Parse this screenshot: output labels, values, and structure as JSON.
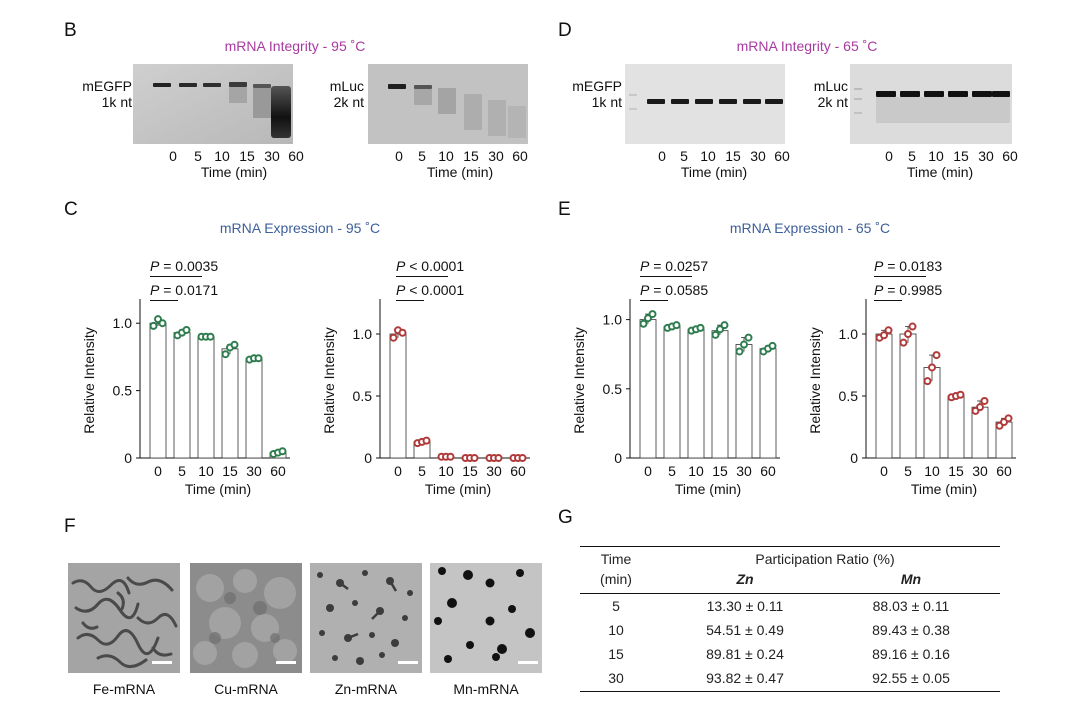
{
  "panels": {
    "B": "B",
    "D": "D",
    "C": "C",
    "E": "E",
    "F": "F",
    "G": "G"
  },
  "integrity": {
    "title_95": "mRNA Integrity - 95 ˚C",
    "title_65": "mRNA Integrity - 65 ˚C",
    "gel_mEGFP_name": "mEGFP",
    "gel_mEGFP_size": "1k nt",
    "gel_mLuc_name": "mLuc",
    "gel_mLuc_size": "2k nt",
    "lanes": [
      "0",
      "5",
      "10",
      "15",
      "30",
      "60"
    ],
    "xlabel": "Time (min)"
  },
  "expression": {
    "title_95": "mRNA Expression - 95 ˚C",
    "title_65": "mRNA Expression - 65 ˚C",
    "ylabel": "Relative Intensity",
    "xlabel": "Time (min)",
    "p": {
      "c1_a": "= 0.0035",
      "c1_b": "= 0.0171",
      "c2_a": "< 0.0001",
      "c2_b": "< 0.0001",
      "e1_a": "= 0.0257",
      "e1_b": "= 0.0585",
      "e2_a": "= 0.0183",
      "e2_b": "= 0.9985"
    },
    "p_symbol": "P"
  },
  "chart_data": [
    {
      "type": "bar",
      "panel": "C-mEGFP",
      "categories": [
        "0",
        "5",
        "10",
        "15",
        "30",
        "60"
      ],
      "values": [
        1.0,
        0.93,
        0.9,
        0.81,
        0.74,
        0.04
      ],
      "points": [
        [
          0.98,
          1.03,
          1.0
        ],
        [
          0.91,
          0.93,
          0.95
        ],
        [
          0.9,
          0.9,
          0.9
        ],
        [
          0.77,
          0.82,
          0.84
        ],
        [
          0.73,
          0.74,
          0.74
        ],
        [
          0.03,
          0.04,
          0.05
        ]
      ],
      "ylabel": "Relative Intensity",
      "xlabel": "Time (min)",
      "ylim": [
        0,
        1.15
      ],
      "yticks": [
        "0",
        "0.5",
        "1.0"
      ],
      "color": "#2e7d4f"
    },
    {
      "type": "bar",
      "panel": "C-mLuc",
      "categories": [
        "0",
        "5",
        "10",
        "15",
        "30",
        "60"
      ],
      "values": [
        1.0,
        0.13,
        0.01,
        0.0,
        0.0,
        0.0
      ],
      "points": [
        [
          0.97,
          1.03,
          1.01
        ],
        [
          0.12,
          0.13,
          0.14
        ],
        [
          0.01,
          0.01,
          0.01
        ],
        [
          0.0,
          0.0,
          0.0
        ],
        [
          0.0,
          0.0,
          0.0
        ],
        [
          0.0,
          0.0,
          0.0
        ]
      ],
      "ylabel": "Relative Intensity",
      "xlabel": "Time (min)",
      "ylim": [
        0,
        1.25
      ],
      "yticks": [
        "0",
        "0.5",
        "1.0"
      ],
      "color": "#b03a3a"
    },
    {
      "type": "bar",
      "panel": "E-mEGFP",
      "categories": [
        "0",
        "5",
        "10",
        "15",
        "30",
        "60"
      ],
      "values": [
        1.0,
        0.95,
        0.93,
        0.92,
        0.82,
        0.79
      ],
      "points": [
        [
          0.97,
          1.01,
          1.04
        ],
        [
          0.94,
          0.95,
          0.96
        ],
        [
          0.92,
          0.93,
          0.94
        ],
        [
          0.89,
          0.93,
          0.96
        ],
        [
          0.77,
          0.82,
          0.87
        ],
        [
          0.77,
          0.79,
          0.81
        ]
      ],
      "ylabel": "Relative Intensity",
      "xlabel": "Time (min)",
      "ylim": [
        0,
        1.12
      ],
      "yticks": [
        "0",
        "0.5",
        "1.0"
      ],
      "color": "#2e7d4f"
    },
    {
      "type": "bar",
      "panel": "E-mLuc",
      "categories": [
        "0",
        "5",
        "10",
        "15",
        "30",
        "60"
      ],
      "values": [
        1.0,
        1.0,
        0.73,
        0.5,
        0.41,
        0.29
      ],
      "points": [
        [
          0.97,
          0.99,
          1.03
        ],
        [
          0.93,
          1.0,
          1.06
        ],
        [
          0.62,
          0.73,
          0.83
        ],
        [
          0.49,
          0.5,
          0.51
        ],
        [
          0.38,
          0.41,
          0.46
        ],
        [
          0.26,
          0.29,
          0.32
        ]
      ],
      "ylabel": "Relative Intensity",
      "xlabel": "Time (min)",
      "ylim": [
        0,
        1.25
      ],
      "yticks": [
        "0",
        "0.5",
        "1.0"
      ],
      "color": "#b03a3a"
    }
  ],
  "em": {
    "labels": [
      "Fe-mRNA",
      "Cu-mRNA",
      "Zn-mRNA",
      "Mn-mRNA"
    ]
  },
  "table": {
    "head_time": "Time",
    "head_min": "(min)",
    "head_ratio": "Participation Ratio (%)",
    "col_zn": "Zn",
    "col_mn": "Mn",
    "rows": [
      {
        "t": "5",
        "zn": "13.30 ± 0.11",
        "mn": "88.03 ± 0.11"
      },
      {
        "t": "10",
        "zn": "54.51 ± 0.49",
        "mn": "89.43 ± 0.38"
      },
      {
        "t": "15",
        "zn": "89.81 ± 0.24",
        "mn": "89.16 ± 0.16"
      },
      {
        "t": "30",
        "zn": "93.82 ± 0.47",
        "mn": "92.55 ± 0.05"
      }
    ]
  }
}
